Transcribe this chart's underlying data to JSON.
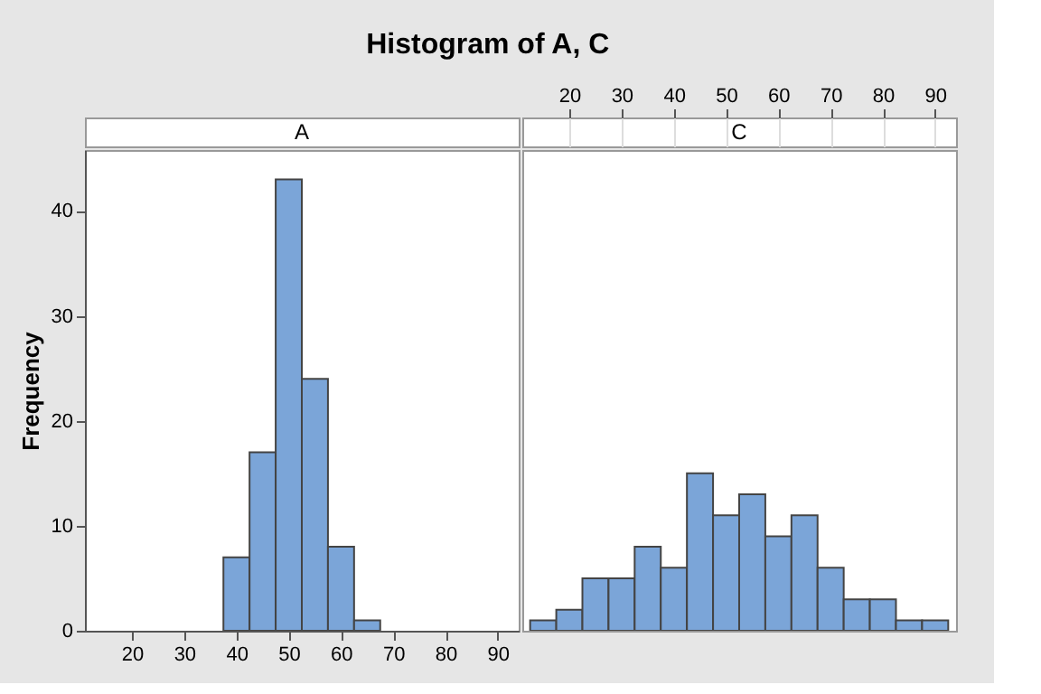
{
  "chart_data": [
    {
      "type": "histogram",
      "title": "A",
      "annotations": [
        "Histogram of A, C"
      ],
      "ylabel": "Frequency",
      "color": "#7ba5d8",
      "bins": [
        12.5,
        17.5,
        22.5,
        27.5,
        32.5,
        37.5,
        42.5,
        47.5,
        52.5,
        57.5,
        62.5,
        67.5,
        72.5,
        77.5,
        82.5,
        87.5,
        92.5
      ],
      "values": [
        0,
        0,
        0,
        0,
        0,
        7,
        17,
        43,
        24,
        8,
        1,
        0,
        0,
        0,
        0,
        0
      ],
      "xlim": [
        11,
        94
      ],
      "xticks": [
        20,
        30,
        40,
        50,
        60,
        70,
        80,
        90
      ],
      "ylim": [
        0,
        45.8
      ],
      "yticks": [
        0,
        10,
        20,
        30,
        40
      ],
      "grid": false
    },
    {
      "type": "histogram",
      "title": "C",
      "color": "#7ba5d8",
      "bins": [
        12.5,
        17.5,
        22.5,
        27.5,
        32.5,
        37.5,
        42.5,
        47.5,
        52.5,
        57.5,
        62.5,
        67.5,
        72.5,
        77.5,
        82.5,
        87.5,
        92.5
      ],
      "values": [
        1,
        2,
        5,
        5,
        8,
        6,
        15,
        11,
        13,
        9,
        11,
        6,
        3,
        3,
        1,
        1
      ],
      "xlim": [
        11,
        94
      ],
      "xticks": [
        20,
        30,
        40,
        50,
        60,
        70,
        80,
        90
      ],
      "ylim": [
        0,
        45.8
      ],
      "tick_labels": "x",
      "grid": false
    }
  ]
}
